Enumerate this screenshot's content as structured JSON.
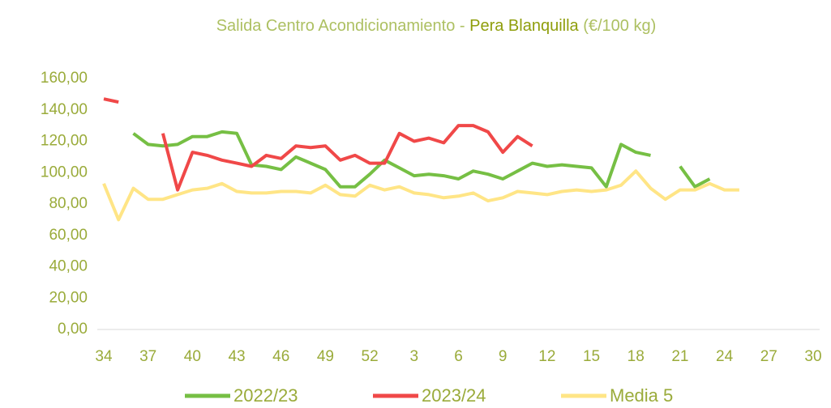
{
  "chart_data": {
    "type": "line",
    "title": [
      "Salida Centro Acondicionamiento - ",
      "Pera Blanquilla",
      " (€/100 kg)"
    ],
    "categories": [
      "34",
      null,
      null,
      "37",
      null,
      null,
      "40",
      null,
      null,
      "43",
      null,
      null,
      "46",
      null,
      null,
      "49",
      null,
      null,
      "52",
      null,
      null,
      "3",
      null,
      null,
      "6",
      null,
      null,
      "9",
      null,
      null,
      "12",
      null,
      null,
      "15",
      null,
      null,
      "18",
      null,
      null,
      "21",
      null,
      null,
      "24",
      null,
      null,
      "27",
      null,
      null,
      "30"
    ],
    "ylim": [
      0,
      160
    ],
    "yticks": [
      {
        "value": 0,
        "label": "0,00"
      },
      {
        "value": 20,
        "label": "20,00"
      },
      {
        "value": 40,
        "label": "40,00"
      },
      {
        "value": 60,
        "label": "60,00"
      },
      {
        "value": 80,
        "label": "80,00"
      },
      {
        "value": 100,
        "label": "100,00"
      },
      {
        "value": 120,
        "label": "120,00"
      },
      {
        "value": 140,
        "label": "140,00"
      },
      {
        "value": 160,
        "label": "160,00"
      }
    ],
    "legend": "bottom",
    "series": [
      {
        "name": "2022/23",
        "color": "#76bf44",
        "values": [
          null,
          null,
          125,
          118,
          117,
          118,
          123,
          123,
          126,
          125,
          105,
          104,
          102,
          110,
          106,
          102,
          91,
          91,
          99,
          108,
          103,
          98,
          99,
          98,
          96,
          101,
          99,
          96,
          101,
          106,
          104,
          105,
          104,
          103,
          91,
          118,
          113,
          111,
          null,
          104,
          91,
          96,
          null,
          null,
          null,
          null,
          null,
          null,
          null
        ]
      },
      {
        "name": "2023/24",
        "color": "#f04848",
        "values": [
          147,
          145,
          null,
          null,
          125,
          89,
          113,
          111,
          108,
          106,
          104,
          111,
          109,
          117,
          116,
          117,
          108,
          111,
          106,
          106,
          125,
          120,
          122,
          119,
          130,
          130,
          126,
          113,
          123,
          117,
          null,
          null,
          null,
          null,
          null,
          null,
          null,
          null,
          null,
          null,
          null,
          null,
          null,
          null,
          null,
          null,
          null,
          null,
          null
        ]
      },
      {
        "name": "Media 5",
        "color": "#ffe586",
        "values": [
          93,
          70,
          90,
          83,
          83,
          86,
          89,
          90,
          93,
          88,
          87,
          87,
          88,
          88,
          87,
          92,
          86,
          85,
          92,
          89,
          91,
          87,
          86,
          84,
          85,
          87,
          82,
          84,
          88,
          87,
          86,
          88,
          89,
          88,
          89,
          92,
          101,
          90,
          83,
          89,
          89,
          93,
          89,
          89,
          null,
          null,
          null,
          null,
          null
        ]
      }
    ]
  }
}
